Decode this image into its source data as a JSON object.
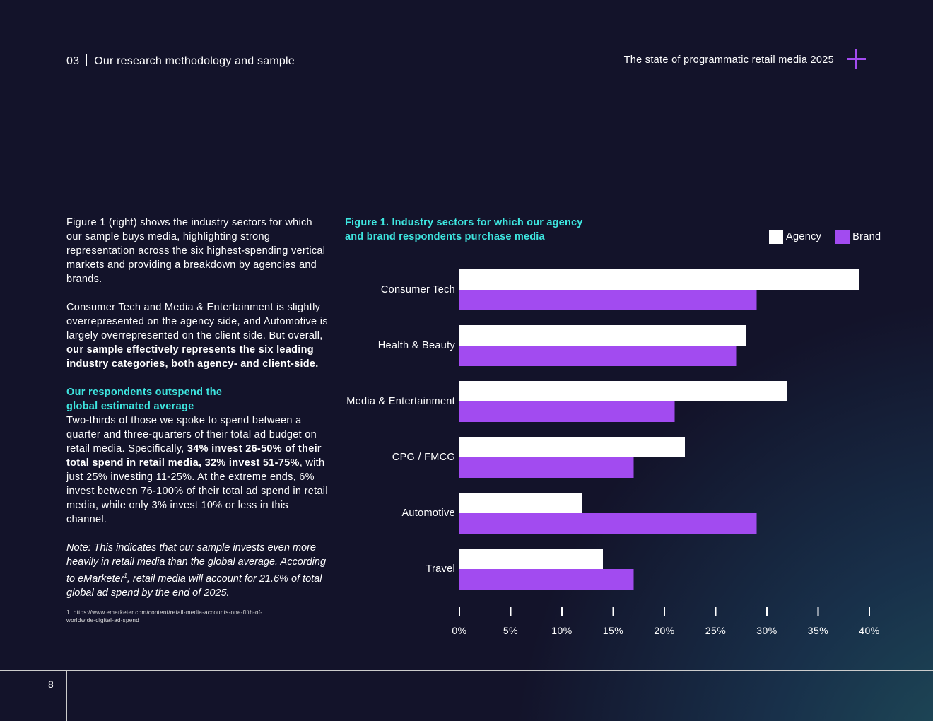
{
  "header": {
    "section_number": "03",
    "section_title": "Our research methodology and sample",
    "doc_title": "The state of programmatic retail media 2025",
    "plus_icon": "plus-icon",
    "accent_color": "#a24bf0"
  },
  "body": {
    "p1": "Figure 1 (right) shows the industry sectors for which our sample buys media, highlighting strong representation across the six highest-spending vertical markets and providing a breakdown by agencies and brands.",
    "p2_a": "Consumer Tech and Media & Entertainment is slightly overrepresented on the agency side, and Automotive is largely overrepresented on the client side. But overall, ",
    "p2_b": "our sample effectively represents the six leading industry categories, both agency- and client-side.",
    "subhead": "Our respondents outspend the global estimated average",
    "p3_a": "Two-thirds of those we spoke to spend between a quarter and three-quarters of their total ad budget on retail media. Specifically, ",
    "p3_b": "34% invest 26-50% of their total spend in retail media, 32% invest 51-75%",
    "p3_c": ", with just 25% investing 11-25%. At the extreme ends, 6% invest between 76-100% of their total ad spend in retail media, while only 3% invest 10% or less in this channel.",
    "note_a": "Note: This indicates that our sample invests even more heavily in retail media than the global average. According to eMarketer",
    "note_sup": "1",
    "note_b": ", retail media will account for 21.6% of total global ad spend by the end of 2025.",
    "footnote": "1. https://www.emarketer.com/content/retail-media-accounts-one-fifth-of-worldwide-digital-ad-spend"
  },
  "footer": {
    "page_number": "8"
  },
  "chart_data": {
    "type": "bar",
    "orientation": "horizontal",
    "title": "Figure 1. Industry sectors for which our agency and brand respondents purchase media",
    "categories": [
      "Consumer Tech",
      "Health & Beauty",
      "Media & Entertainment",
      "CPG / FMCG",
      "Automotive",
      "Travel"
    ],
    "series": [
      {
        "name": "Agency",
        "color": "#ffffff",
        "values": [
          39,
          28,
          32,
          22,
          12,
          14
        ]
      },
      {
        "name": "Brand",
        "color": "#a24bf0",
        "values": [
          29,
          27,
          21,
          17,
          29,
          17
        ]
      }
    ],
    "xlim": [
      0,
      40
    ],
    "xticks": [
      "0%",
      "5%",
      "10%",
      "15%",
      "20%",
      "25%",
      "30%",
      "35%",
      "40%"
    ],
    "grid": false,
    "legend": "top-right",
    "title_color": "#3ee6e0"
  }
}
